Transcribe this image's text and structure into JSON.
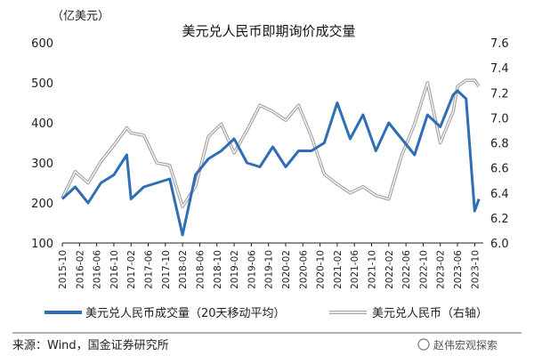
{
  "chart_data": {
    "type": "line",
    "title": "美元兑人民币即期询价成交量",
    "unit_left": "（亿美元）",
    "y_left": {
      "min": 100,
      "max": 600,
      "ticks": [
        "100",
        "200",
        "300",
        "400",
        "500",
        "600"
      ]
    },
    "y_right": {
      "min": 6.0,
      "max": 7.6,
      "ticks": [
        "6.0",
        "6.2",
        "6.4",
        "6.6",
        "6.8",
        "7.0",
        "7.2",
        "7.4",
        "7.6"
      ]
    },
    "x_range": [
      "2015-10",
      "2023-12"
    ],
    "x_ticks": [
      "2015-10",
      "2016-02",
      "2016-06",
      "2016-10",
      "2017-02",
      "2017-06",
      "2017-10",
      "2018-02",
      "2018-06",
      "2018-10",
      "2019-02",
      "2019-06",
      "2019-10",
      "2020-02",
      "2020-06",
      "2020-10",
      "2021-02",
      "2021-06",
      "2021-10",
      "2022-02",
      "2022-06",
      "2022-10",
      "2023-02",
      "2023-06",
      "2023-10"
    ],
    "legend_position": "bottom",
    "grid": false,
    "series": [
      {
        "name": "美元兑人民币成交量（20天移动平均）",
        "axis": "left",
        "color": "#2f6db5",
        "x": [
          "2015-10",
          "2016-01",
          "2016-04",
          "2016-07",
          "2016-10",
          "2017-01",
          "2017-02",
          "2017-05",
          "2017-08",
          "2017-11",
          "2018-02",
          "2018-05",
          "2018-08",
          "2018-11",
          "2019-02",
          "2019-05",
          "2019-08",
          "2019-11",
          "2020-02",
          "2020-05",
          "2020-08",
          "2020-11",
          "2021-02",
          "2021-05",
          "2021-08",
          "2021-11",
          "2022-02",
          "2022-05",
          "2022-08",
          "2022-11",
          "2023-02",
          "2023-05",
          "2023-06",
          "2023-08",
          "2023-10",
          "2023-11"
        ],
        "values": [
          210,
          240,
          200,
          250,
          270,
          320,
          210,
          240,
          250,
          260,
          120,
          270,
          310,
          330,
          360,
          300,
          290,
          340,
          290,
          330,
          330,
          350,
          450,
          360,
          420,
          330,
          400,
          360,
          320,
          420,
          390,
          470,
          480,
          460,
          180,
          210
        ]
      },
      {
        "name": "美元兑人民币（右轴）",
        "axis": "right",
        "color": "#a6a6a6",
        "x": [
          "2015-10",
          "2016-01",
          "2016-04",
          "2016-07",
          "2016-10",
          "2017-01",
          "2017-02",
          "2017-05",
          "2017-08",
          "2017-11",
          "2018-02",
          "2018-05",
          "2018-08",
          "2018-11",
          "2019-02",
          "2019-05",
          "2019-08",
          "2019-11",
          "2020-02",
          "2020-05",
          "2020-08",
          "2020-11",
          "2021-02",
          "2021-05",
          "2021-08",
          "2021-11",
          "2022-02",
          "2022-05",
          "2022-08",
          "2022-11",
          "2023-02",
          "2023-05",
          "2023-06",
          "2023-08",
          "2023-10",
          "2023-11"
        ],
        "values": [
          6.36,
          6.57,
          6.48,
          6.65,
          6.78,
          6.92,
          6.88,
          6.86,
          6.64,
          6.62,
          6.29,
          6.45,
          6.85,
          6.95,
          6.72,
          6.9,
          7.1,
          7.05,
          6.98,
          7.1,
          6.85,
          6.55,
          6.47,
          6.4,
          6.45,
          6.38,
          6.35,
          6.7,
          6.95,
          7.28,
          6.8,
          7.05,
          7.25,
          7.3,
          7.3,
          7.25
        ]
      }
    ]
  },
  "legend": {
    "line1": "美元兑人民币成交量（20天移动平均）",
    "line2": "美元兑人民币（右轴）"
  },
  "source": "来源：Wind，国金证券研究所",
  "watermark": "赵伟宏观探索"
}
